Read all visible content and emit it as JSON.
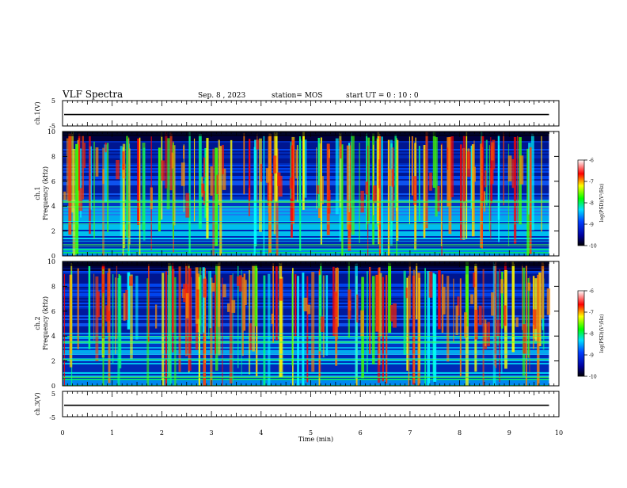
{
  "header": {
    "title": "VLF Spectra",
    "date": "Sep. 8  , 2023",
    "station": "station= MOS",
    "start_ut": "start  UT =   0  : 10 : 0"
  },
  "chart_data": [
    {
      "type": "line",
      "id": "ch1_waveform",
      "ylabel": "ch.1(V)",
      "x": [
        0,
        9.8
      ],
      "values": [
        -0.5,
        -0.5
      ],
      "ylim": [
        -5,
        5
      ],
      "yticks": [
        "5",
        "-5"
      ],
      "xlim": [
        0,
        10
      ]
    },
    {
      "type": "heatmap",
      "id": "ch1_spectrogram",
      "ylabel": "ch.1\nFrequency  (kHz)",
      "xlim": [
        0,
        10
      ],
      "data_xmax": 9.8,
      "ylim": [
        0,
        10
      ],
      "yticks": [
        "0",
        "2",
        "4",
        "6",
        "8",
        "10"
      ],
      "colorbar": {
        "label": "log(PSD)(V²/Hz)",
        "range": [
          -10,
          -6
        ],
        "ticks": [
          "-6",
          "-7",
          "-8",
          "-9",
          "-10"
        ]
      }
    },
    {
      "type": "heatmap",
      "id": "ch2_spectrogram",
      "ylabel": "ch.2\nFrequency  (kHz)",
      "xlim": [
        0,
        10
      ],
      "data_xmax": 9.8,
      "ylim": [
        0,
        10
      ],
      "yticks": [
        "0",
        "2",
        "4",
        "6",
        "8",
        "10"
      ],
      "colorbar": {
        "label": "log(PSD)(V²/Hz)",
        "range": [
          -10,
          -6
        ],
        "ticks": [
          "-6",
          "-7",
          "-8",
          "-9",
          "-10"
        ]
      }
    },
    {
      "type": "line",
      "id": "ch3_waveform",
      "ylabel": "ch.3(V)",
      "x": [
        0,
        9.8
      ],
      "values": [
        -0.5,
        -0.5
      ],
      "ylim": [
        -5,
        5
      ],
      "yticks": [
        "5",
        "-5"
      ],
      "xlim": [
        0,
        10
      ]
    }
  ],
  "xaxis": {
    "label": "Time  (min)",
    "ticks": [
      "0",
      "1",
      "2",
      "3",
      "4",
      "5",
      "6",
      "7",
      "8",
      "9",
      "10"
    ]
  }
}
